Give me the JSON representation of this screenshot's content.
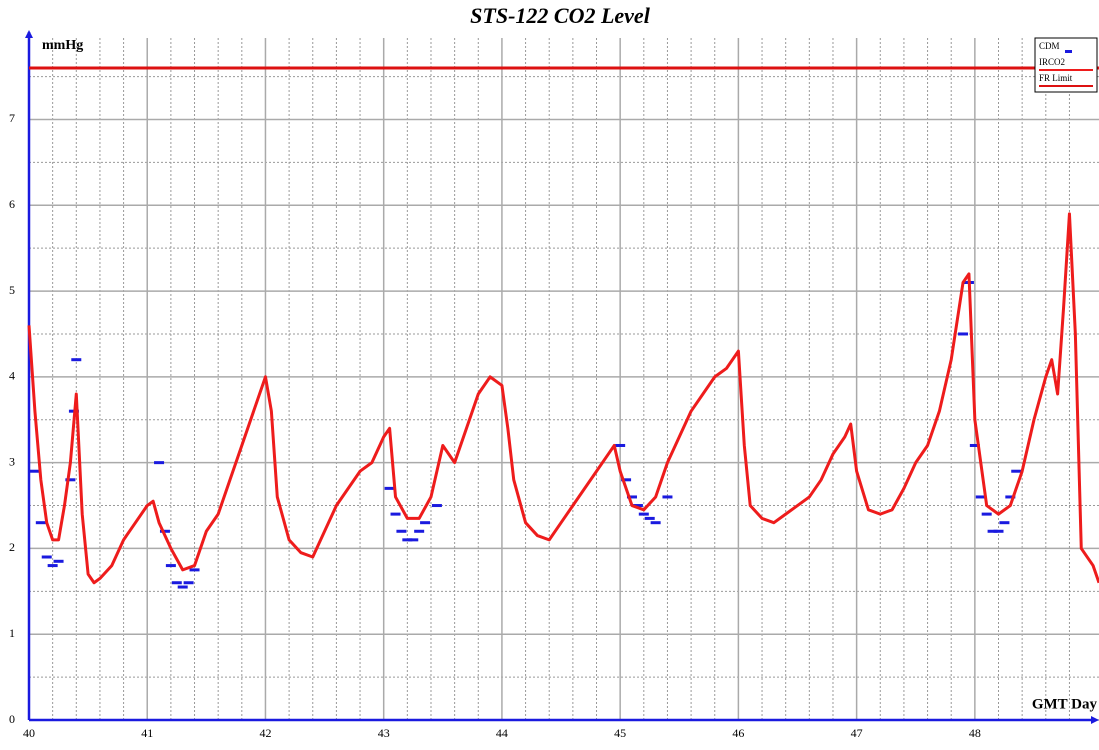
{
  "chart_data": {
    "type": "line",
    "title": "STS-122 CO2 Level",
    "y_label": "mmHg",
    "x_label": "GMT Day",
    "xlim": [
      40,
      49.05
    ],
    "ylim": [
      0,
      7.95
    ],
    "xticks": [
      40,
      41,
      42,
      43,
      44,
      45,
      46,
      47,
      48
    ],
    "yticks": [
      0,
      1,
      2,
      3,
      4,
      5,
      6,
      7
    ],
    "grid": true,
    "legend": "top-right",
    "series": [
      {
        "name": "CDM",
        "color": "#1a1adf",
        "mode": "markers",
        "x": [
          40.05,
          40.1,
          40.15,
          40.2,
          40.25,
          40.35,
          40.38,
          40.4,
          41.1,
          41.15,
          41.2,
          41.25,
          41.3,
          41.35,
          41.4,
          43.05,
          43.1,
          43.15,
          43.2,
          43.25,
          43.3,
          43.35,
          43.45,
          45.0,
          45.05,
          45.1,
          45.15,
          45.2,
          45.25,
          45.3,
          45.4,
          47.9,
          47.95,
          48.0,
          48.05,
          48.1,
          48.15,
          48.2,
          48.25,
          48.3,
          48.35
        ],
        "values": [
          2.9,
          2.3,
          1.9,
          1.8,
          1.85,
          2.8,
          3.6,
          4.2,
          3.0,
          2.2,
          1.8,
          1.6,
          1.55,
          1.6,
          1.75,
          2.7,
          2.4,
          2.2,
          2.1,
          2.1,
          2.2,
          2.3,
          2.5,
          3.2,
          2.8,
          2.6,
          2.5,
          2.4,
          2.35,
          2.3,
          2.6,
          4.5,
          5.1,
          3.2,
          2.6,
          2.4,
          2.2,
          2.2,
          2.3,
          2.6,
          2.9
        ]
      },
      {
        "name": "IRCO2",
        "color": "#ee1c1c",
        "mode": "line",
        "x": [
          40.0,
          40.05,
          40.1,
          40.15,
          40.2,
          40.25,
          40.3,
          40.35,
          40.4,
          40.45,
          40.5,
          40.55,
          40.6,
          40.7,
          40.8,
          40.9,
          41.0,
          41.05,
          41.1,
          41.2,
          41.3,
          41.4,
          41.5,
          41.6,
          41.7,
          41.8,
          41.9,
          42.0,
          42.05,
          42.1,
          42.2,
          42.3,
          42.4,
          42.5,
          42.6,
          42.7,
          42.8,
          42.9,
          43.0,
          43.05,
          43.1,
          43.2,
          43.3,
          43.4,
          43.5,
          43.6,
          43.7,
          43.8,
          43.9,
          44.0,
          44.05,
          44.1,
          44.2,
          44.3,
          44.4,
          44.5,
          44.6,
          44.7,
          44.8,
          44.9,
          44.95,
          45.0,
          45.1,
          45.2,
          45.3,
          45.4,
          45.5,
          45.6,
          45.7,
          45.8,
          45.9,
          46.0,
          46.05,
          46.1,
          46.2,
          46.3,
          46.4,
          46.5,
          46.6,
          46.7,
          46.8,
          46.9,
          46.95,
          47.0,
          47.1,
          47.2,
          47.3,
          47.4,
          47.5,
          47.6,
          47.7,
          47.8,
          47.9,
          47.95,
          48.0,
          48.1,
          48.2,
          48.3,
          48.4,
          48.5,
          48.6,
          48.65,
          48.7,
          48.75,
          48.8,
          48.85,
          48.9,
          49.0,
          49.05
        ],
        "values": [
          4.6,
          3.6,
          2.8,
          2.3,
          2.1,
          2.1,
          2.5,
          3.0,
          3.8,
          2.4,
          1.7,
          1.6,
          1.65,
          1.8,
          2.1,
          2.3,
          2.5,
          2.55,
          2.3,
          2.0,
          1.75,
          1.8,
          2.2,
          2.4,
          2.8,
          3.2,
          3.6,
          4.0,
          3.6,
          2.6,
          2.1,
          1.95,
          1.9,
          2.2,
          2.5,
          2.7,
          2.9,
          3.0,
          3.3,
          3.4,
          2.6,
          2.35,
          2.35,
          2.6,
          3.2,
          3.0,
          3.4,
          3.8,
          4.0,
          3.9,
          3.4,
          2.8,
          2.3,
          2.15,
          2.1,
          2.3,
          2.5,
          2.7,
          2.9,
          3.1,
          3.2,
          2.9,
          2.5,
          2.45,
          2.6,
          3.0,
          3.3,
          3.6,
          3.8,
          4.0,
          4.1,
          4.3,
          3.2,
          2.5,
          2.35,
          2.3,
          2.4,
          2.5,
          2.6,
          2.8,
          3.1,
          3.3,
          3.45,
          2.9,
          2.45,
          2.4,
          2.45,
          2.7,
          3.0,
          3.2,
          3.6,
          4.2,
          5.1,
          5.2,
          3.5,
          2.5,
          2.4,
          2.5,
          2.9,
          3.5,
          4.0,
          4.2,
          3.8,
          4.8,
          5.9,
          4.5,
          2.0,
          1.8,
          1.6
        ]
      },
      {
        "name": "FR Limit",
        "color": "#dd1111",
        "mode": "line",
        "x": [
          40,
          49.05
        ],
        "values": [
          7.6,
          7.6
        ]
      }
    ]
  }
}
